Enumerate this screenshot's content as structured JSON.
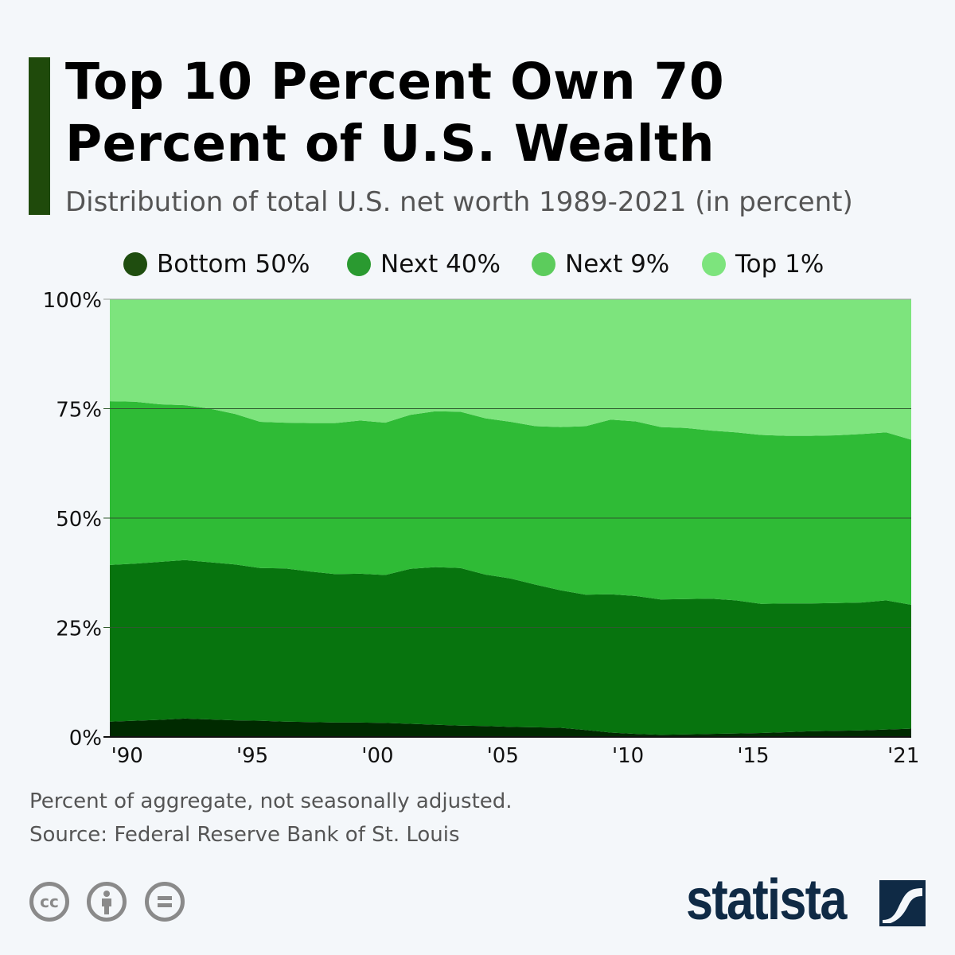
{
  "header": {
    "title": "Top 10 Percent Own 70 Percent of U.S. Wealth",
    "subtitle": "Distribution of total U.S. net worth 1989-2021 (in percent)",
    "accent_color": "#1f4a0b"
  },
  "chart_data": {
    "type": "area",
    "stacked": true,
    "title": "Top 10 Percent Own 70 Percent of U.S. Wealth",
    "subtitle": "Distribution of total U.S. net worth 1989-2021 (in percent)",
    "xlabel": "",
    "ylabel": "",
    "xlim": [
      1989.5,
      2021.5
    ],
    "ylim": [
      0,
      100
    ],
    "grid": true,
    "legend_position": "top",
    "y_ticks": [
      {
        "value": 0,
        "label": "0%"
      },
      {
        "value": 25,
        "label": "25%"
      },
      {
        "value": 50,
        "label": "50%"
      },
      {
        "value": 75,
        "label": "75%"
      },
      {
        "value": 100,
        "label": "100%"
      }
    ],
    "x_ticks": [
      {
        "value": 1990,
        "label": "'90"
      },
      {
        "value": 1995,
        "label": "'95"
      },
      {
        "value": 2000,
        "label": "'00"
      },
      {
        "value": 2005,
        "label": "'05"
      },
      {
        "value": 2010,
        "label": "'10"
      },
      {
        "value": 2015,
        "label": "'15"
      },
      {
        "value": 2021,
        "label": "'21"
      }
    ],
    "x": [
      1989.5,
      1990.5,
      1991.5,
      1992.5,
      1993.5,
      1994.5,
      1995.5,
      1996.5,
      1997.5,
      1998.5,
      1999.5,
      2000.5,
      2001.5,
      2002.5,
      2003.5,
      2004.5,
      2005.5,
      2006.5,
      2007.5,
      2008.5,
      2009.5,
      2010.5,
      2011.5,
      2012.5,
      2013.5,
      2014.5,
      2015.5,
      2016.5,
      2017.5,
      2018.5,
      2019.5,
      2020.5,
      2021.5
    ],
    "series": [
      {
        "name": "Bottom 50%",
        "color": "#002a00",
        "legend_color": "#1f4d0f",
        "values": [
          3.5,
          3.7,
          3.9,
          4.2,
          4.0,
          3.8,
          3.7,
          3.5,
          3.4,
          3.3,
          3.3,
          3.2,
          3.0,
          2.8,
          2.6,
          2.5,
          2.3,
          2.2,
          2.1,
          1.6,
          1.0,
          0.7,
          0.5,
          0.6,
          0.7,
          0.8,
          0.9,
          1.1,
          1.3,
          1.4,
          1.5,
          1.7,
          1.9
        ]
      },
      {
        "name": "Next 40%",
        "color": "#07740e",
        "legend_color": "#2a9a30",
        "values": [
          35.8,
          35.9,
          36.1,
          36.2,
          35.9,
          35.6,
          34.9,
          35.0,
          34.4,
          33.9,
          34.0,
          33.8,
          35.4,
          36.0,
          36.0,
          34.6,
          33.9,
          32.6,
          31.4,
          30.9,
          31.6,
          31.5,
          30.9,
          30.9,
          30.9,
          30.4,
          29.5,
          29.4,
          29.2,
          29.2,
          29.2,
          29.5,
          28.3
        ]
      },
      {
        "name": "Next 9%",
        "color": "#2fbb36",
        "legend_color": "#5ccc5c",
        "values": [
          37.4,
          37.0,
          36.0,
          35.4,
          35.1,
          34.4,
          33.4,
          33.3,
          33.9,
          34.5,
          35.0,
          34.8,
          35.2,
          35.6,
          35.7,
          35.7,
          35.8,
          36.2,
          37.3,
          38.5,
          39.9,
          39.9,
          39.4,
          39.1,
          38.4,
          38.4,
          38.6,
          38.3,
          38.3,
          38.3,
          38.5,
          38.4,
          37.7
        ]
      },
      {
        "name": "Top 1%",
        "color": "#7de47d",
        "legend_color": "#7de47d",
        "values": [
          23.3,
          23.4,
          24.0,
          24.2,
          25.0,
          26.2,
          28.0,
          28.2,
          28.3,
          28.3,
          27.7,
          28.2,
          26.4,
          25.6,
          25.7,
          27.2,
          28.0,
          29.0,
          29.2,
          29.0,
          27.5,
          27.9,
          29.2,
          29.4,
          30.0,
          30.4,
          31.0,
          31.2,
          31.2,
          31.1,
          30.8,
          30.4,
          32.1
        ]
      }
    ]
  },
  "footer": {
    "note": "Percent of aggregate, not seasonally adjusted.",
    "source": "Source: Federal Reserve Bank of St. Louis",
    "license_icons": [
      "cc-icon",
      "attribution-icon",
      "no-derivatives-icon"
    ],
    "logo": "statista"
  }
}
